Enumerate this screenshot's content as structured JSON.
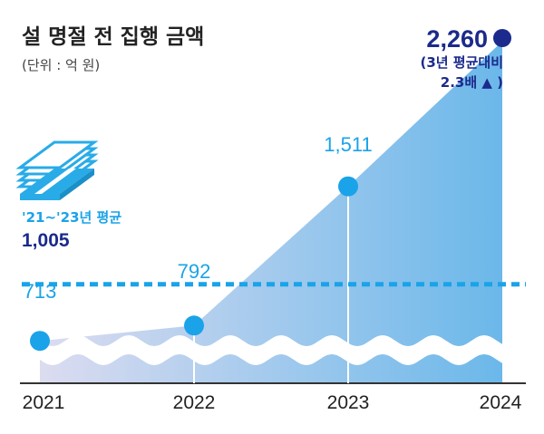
{
  "chart_data": {
    "type": "area",
    "title": "설 명절 전 집행 금액",
    "subtitle": "(단위 : 억 원)",
    "categories": [
      "2021",
      "2022",
      "2023",
      "2024"
    ],
    "values": [
      713,
      792,
      1511,
      2260
    ],
    "value_labels": [
      "713",
      "792",
      "1,511",
      "2,260"
    ],
    "average": {
      "label": "'21~'23년 평균",
      "value": 1005,
      "value_label": "1,005"
    },
    "annotation": {
      "line1": "(3년 평균대비",
      "line2": "2.3배 ▲ )"
    },
    "colors": {
      "accent": "#1aa3e8",
      "dark": "#1b2a8c",
      "area_start": "#dcdcf0",
      "area_end": "#6bb8ea",
      "money_icon": "#29abe8"
    }
  }
}
